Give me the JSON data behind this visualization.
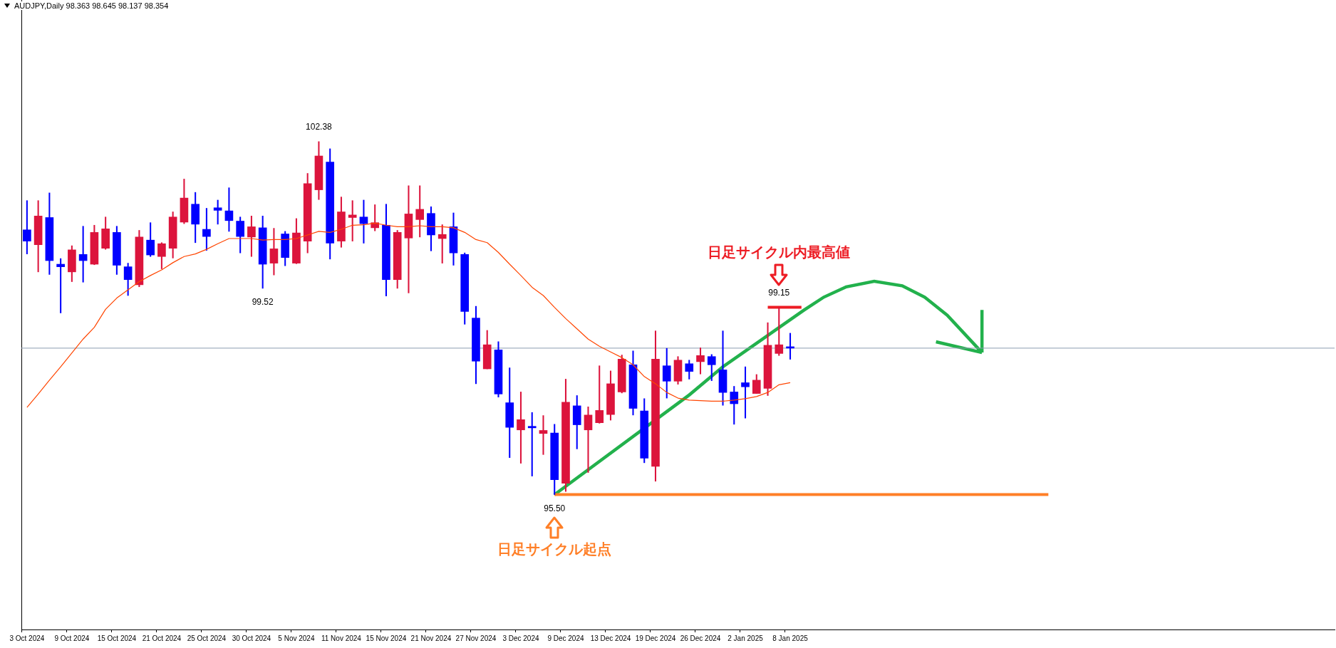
{
  "chart_data": {
    "type": "candlestick",
    "title": "AUDJPY,Daily  98.363 98.645 98.137 98.354",
    "categories": [
      "3 Oct 2024",
      null,
      null,
      null,
      "9 Oct 2024",
      null,
      null,
      null,
      "15 Oct 2024",
      null,
      null,
      null,
      "21 Oct 2024",
      null,
      null,
      null,
      "25 Oct 2024",
      null,
      null,
      null,
      "30 Oct 2024",
      null,
      null,
      null,
      "5 Nov 2024",
      null,
      null,
      null,
      "11 Nov 2024",
      null,
      null,
      null,
      "15 Nov 2024",
      null,
      null,
      null,
      "21 Nov 2024",
      null,
      null,
      null,
      "27 Nov 2024",
      null,
      null,
      null,
      "3 Dec 2024",
      null,
      null,
      null,
      "9 Dec 2024",
      null,
      null,
      null,
      "13 Dec 2024",
      null,
      null,
      null,
      "19 Dec 2024",
      null,
      null,
      null,
      "26 Dec 2024",
      null,
      null,
      null,
      "2 Jan 2025",
      null,
      null,
      null,
      "8 Jan 2025",
      null,
      null,
      null,
      null,
      null,
      null,
      null,
      null,
      null,
      null,
      null,
      null,
      null,
      null,
      null,
      null,
      null,
      null,
      null,
      null,
      null,
      null,
      null,
      null,
      null,
      null,
      null,
      null,
      null,
      null,
      null,
      null,
      null,
      null,
      null,
      null,
      null,
      null,
      null,
      null,
      null,
      null,
      null,
      null,
      null,
      null,
      null,
      null
    ],
    "ohlc": [
      [
        100.66,
        101.23,
        100.19,
        100.44
      ],
      [
        100.37,
        101.23,
        99.84,
        100.93
      ],
      [
        100.9,
        101.38,
        99.79,
        100.06
      ],
      [
        99.99,
        100.1,
        99.04,
        99.94
      ],
      [
        99.84,
        100.35,
        99.65,
        100.27
      ],
      [
        100.18,
        100.73,
        99.64,
        100.06
      ],
      [
        99.99,
        100.75,
        99.98,
        100.61
      ],
      [
        100.3,
        100.91,
        100.28,
        100.68
      ],
      [
        100.61,
        100.73,
        99.79,
        99.97
      ],
      [
        99.94,
        100.01,
        99.38,
        99.69
      ],
      [
        99.59,
        100.65,
        99.55,
        100.52
      ],
      [
        100.46,
        100.8,
        100.14,
        100.17
      ],
      [
        100.14,
        100.41,
        99.9,
        100.39
      ],
      [
        100.3,
        101.01,
        100.11,
        100.91
      ],
      [
        100.81,
        101.65,
        100.78,
        101.28
      ],
      [
        101.16,
        101.39,
        100.41,
        100.77
      ],
      [
        100.67,
        101.08,
        100.26,
        100.53
      ],
      [
        101.09,
        101.24,
        100.77,
        101.04
      ],
      [
        101.03,
        101.48,
        100.63,
        100.84
      ],
      [
        100.83,
        100.91,
        100.21,
        100.53
      ],
      [
        100.52,
        100.93,
        100.14,
        100.72
      ],
      [
        100.7,
        100.93,
        99.52,
        99.99
      ],
      [
        100.01,
        100.69,
        99.78,
        100.29
      ],
      [
        100.58,
        100.63,
        99.96,
        100.12
      ],
      [
        100.01,
        100.88,
        100.0,
        100.6
      ],
      [
        100.44,
        101.76,
        100.21,
        101.56
      ],
      [
        101.44,
        102.38,
        101.25,
        102.1
      ],
      [
        101.98,
        102.24,
        100.09,
        100.4
      ],
      [
        100.44,
        101.3,
        100.32,
        101.01
      ],
      [
        100.9,
        101.23,
        100.44,
        100.95
      ],
      [
        100.91,
        101.24,
        100.4,
        100.78
      ],
      [
        100.7,
        101.15,
        100.64,
        100.8
      ],
      [
        100.75,
        101.16,
        99.37,
        99.69
      ],
      [
        99.69,
        100.65,
        99.52,
        100.61
      ],
      [
        100.5,
        101.52,
        99.43,
        100.97
      ],
      [
        100.86,
        101.52,
        100.52,
        101.06
      ],
      [
        100.98,
        101.11,
        100.25,
        100.56
      ],
      [
        100.49,
        100.76,
        100.01,
        100.57
      ],
      [
        100.72,
        100.99,
        99.97,
        100.21
      ],
      [
        100.18,
        100.21,
        98.82,
        99.07
      ],
      [
        98.94,
        99.17,
        97.66,
        98.1
      ],
      [
        97.95,
        98.7,
        97.95,
        98.42
      ],
      [
        98.32,
        98.48,
        97.4,
        97.46
      ],
      [
        97.29,
        97.97,
        96.22,
        96.81
      ],
      [
        96.76,
        97.5,
        96.11,
        96.96
      ],
      [
        96.83,
        97.1,
        95.86,
        96.8
      ],
      [
        96.69,
        97.04,
        96.28,
        96.75
      ],
      [
        96.7,
        96.87,
        95.5,
        95.79
      ],
      [
        95.72,
        97.75,
        95.56,
        97.3
      ],
      [
        97.23,
        97.43,
        96.39,
        96.86
      ],
      [
        96.76,
        97.21,
        95.93,
        97.05
      ],
      [
        96.9,
        98.01,
        96.89,
        97.14
      ],
      [
        97.06,
        97.91,
        96.95,
        97.66
      ],
      [
        97.5,
        98.22,
        97.48,
        98.14
      ],
      [
        98.03,
        98.3,
        97.05,
        97.18
      ],
      [
        97.13,
        97.37,
        96.12,
        96.21
      ],
      [
        96.05,
        98.69,
        95.76,
        98.14
      ],
      [
        98.01,
        98.35,
        97.38,
        97.71
      ],
      [
        97.71,
        98.19,
        97.65,
        98.12
      ],
      [
        98.05,
        98.12,
        97.75,
        97.9
      ],
      [
        98.09,
        98.36,
        97.85,
        98.21
      ],
      [
        98.19,
        98.23,
        97.72,
        98.03
      ],
      [
        97.93,
        98.69,
        97.24,
        97.49
      ],
      [
        97.5,
        97.61,
        96.87,
        97.27
      ],
      [
        97.68,
        97.99,
        96.99,
        97.6
      ],
      [
        97.47,
        97.84,
        97.47,
        97.73
      ],
      [
        97.57,
        98.85,
        97.43,
        98.41
      ],
      [
        98.25,
        99.15,
        98.21,
        98.42
      ],
      [
        98.363,
        98.645,
        98.137,
        98.354
      ],
      null,
      null,
      null,
      null,
      null,
      null,
      null,
      null,
      null,
      null,
      null,
      null,
      null,
      null,
      null,
      null,
      null,
      null,
      null,
      null,
      null,
      null,
      null,
      null,
      null,
      null,
      null,
      null,
      null,
      null,
      null,
      null,
      null,
      null,
      null,
      null,
      null,
      null,
      null,
      null,
      null,
      null,
      null,
      null,
      null,
      null,
      null,
      null
    ],
    "colors": [
      "#0000ff",
      "#dc143c",
      "#0000ff",
      "#0000ff",
      "#dc143c",
      "#0000ff",
      "#dc143c",
      "#dc143c",
      "#0000ff",
      "#0000ff",
      "#dc143c",
      "#0000ff",
      "#dc143c",
      "#dc143c",
      "#dc143c",
      "#0000ff",
      "#0000ff",
      "#0000ff",
      "#0000ff",
      "#0000ff",
      "#dc143c",
      "#0000ff",
      "#dc143c",
      "#0000ff",
      "#dc143c",
      "#dc143c",
      "#dc143c",
      "#0000ff",
      "#dc143c",
      "#dc143c",
      "#0000ff",
      "#dc143c",
      "#0000ff",
      "#dc143c",
      "#dc143c",
      "#dc143c",
      "#0000ff",
      "#dc143c",
      "#0000ff",
      "#0000ff",
      "#0000ff",
      "#dc143c",
      "#0000ff",
      "#0000ff",
      "#dc143c",
      "#0000ff",
      "#dc143c",
      "#0000ff",
      "#dc143c",
      "#0000ff",
      "#dc143c",
      "#dc143c",
      "#dc143c",
      "#dc143c",
      "#0000ff",
      "#0000ff",
      "#dc143c",
      "#0000ff",
      "#dc143c",
      "#0000ff",
      "#dc143c",
      "#0000ff",
      "#0000ff",
      "#0000ff",
      "#0000ff",
      "#dc143c",
      "#dc143c",
      "#dc143c",
      "#0000ff",
      null,
      null,
      null,
      null,
      null,
      null,
      null,
      null,
      null,
      null,
      null,
      null,
      null,
      null,
      null,
      null,
      null,
      null,
      null,
      null,
      null,
      null,
      null,
      null,
      null,
      null,
      null,
      null,
      null,
      null,
      null,
      null,
      null,
      null,
      null,
      null,
      null,
      null,
      null,
      null,
      null,
      null,
      null,
      null,
      null,
      null,
      null,
      null
    ],
    "value_labels": [
      null,
      null,
      null,
      null,
      null,
      null,
      null,
      null,
      null,
      null,
      null,
      null,
      null,
      null,
      null,
      null,
      null,
      null,
      null,
      null,
      null,
      "99.52",
      null,
      null,
      null,
      null,
      "102.38",
      null,
      null,
      null,
      null,
      null,
      null,
      null,
      null,
      null,
      null,
      null,
      null,
      null,
      null,
      null,
      null,
      null,
      null,
      null,
      null,
      "95.50",
      null,
      null,
      null,
      null,
      null,
      null,
      null,
      null,
      null,
      null,
      null,
      null,
      null,
      null,
      null,
      null,
      null,
      null,
      null,
      "99.15",
      null,
      null,
      null,
      null,
      null,
      null,
      null,
      null,
      null,
      null,
      null,
      null,
      null,
      null,
      null,
      null,
      null,
      null,
      null,
      null,
      null,
      null,
      null,
      null,
      null,
      null,
      null,
      null,
      null,
      null,
      null,
      null,
      null,
      null,
      null,
      null,
      null,
      null,
      null,
      null,
      null,
      null,
      null,
      null,
      null,
      null,
      null,
      null,
      null
    ],
    "series": [
      {
        "type": "line",
        "color": "#ff4500",
        "values": [
          97.2,
          97.46,
          97.73,
          97.99,
          98.26,
          98.53,
          98.76,
          99.11,
          99.33,
          99.49,
          99.65,
          99.77,
          99.88,
          100.02,
          100.14,
          100.19,
          100.28,
          100.39,
          100.49,
          100.49,
          100.49,
          100.46,
          100.47,
          100.47,
          100.49,
          100.56,
          100.63,
          100.61,
          100.67,
          100.75,
          100.76,
          100.79,
          100.75,
          100.72,
          100.72,
          100.74,
          100.72,
          100.72,
          100.7,
          100.61,
          100.47,
          100.41,
          100.22,
          99.99,
          99.77,
          99.54,
          99.38,
          99.15,
          98.93,
          98.73,
          98.53,
          98.39,
          98.28,
          98.17,
          98.03,
          97.8,
          97.66,
          97.49,
          97.38,
          97.34,
          97.33,
          97.32,
          97.32,
          97.34,
          97.37,
          97.41,
          97.49,
          97.64,
          97.68,
          null,
          null,
          null,
          null,
          null,
          null,
          null,
          null,
          null,
          null,
          null,
          null,
          null,
          null,
          null,
          null,
          null,
          null,
          null,
          null,
          null,
          null,
          null,
          null,
          null,
          null,
          null,
          null,
          null,
          null,
          null,
          null,
          null,
          null,
          null,
          null,
          null,
          null,
          null,
          null,
          null,
          null,
          null,
          null,
          null,
          null,
          null,
          null
        ]
      },
      {
        "type": "line",
        "color": "#ed1c24",
        "values": [
          null,
          null,
          null,
          null,
          null,
          null,
          null,
          null,
          null,
          null,
          null,
          null,
          null,
          null,
          null,
          null,
          null,
          null,
          null,
          null,
          null,
          null,
          null,
          null,
          null,
          null,
          null,
          null,
          null,
          null,
          null,
          null,
          null,
          null,
          null,
          null,
          null,
          null,
          null,
          null,
          null,
          null,
          null,
          null,
          null,
          null,
          null,
          null,
          null,
          null,
          null,
          null,
          null,
          null,
          null,
          null,
          null,
          null,
          null,
          null,
          null,
          null,
          null,
          null,
          null,
          null,
          99.15,
          99.15,
          99.15,
          99.15,
          null,
          null,
          null,
          null,
          null,
          null,
          null,
          null,
          null,
          null,
          null,
          null,
          null,
          null,
          null,
          null,
          null,
          null,
          null,
          null,
          null,
          null,
          null,
          null,
          null,
          null,
          null,
          null,
          null,
          null,
          null,
          null,
          null,
          null,
          null,
          null,
          null,
          null,
          null,
          null,
          null,
          null,
          null,
          null,
          null,
          null,
          null
        ]
      },
      {
        "type": "line",
        "color": "#ff7f27",
        "values": [
          null,
          null,
          null,
          null,
          null,
          null,
          null,
          null,
          null,
          null,
          null,
          null,
          null,
          null,
          null,
          null,
          null,
          null,
          null,
          null,
          null,
          null,
          null,
          null,
          null,
          null,
          null,
          null,
          null,
          null,
          null,
          null,
          null,
          null,
          null,
          null,
          null,
          null,
          null,
          null,
          null,
          null,
          null,
          null,
          null,
          null,
          null,
          95.5,
          95.5,
          95.5,
          95.5,
          95.5,
          95.5,
          95.5,
          95.5,
          95.5,
          95.5,
          95.5,
          95.5,
          95.5,
          95.5,
          95.5,
          95.5,
          95.5,
          95.5,
          95.5,
          95.5,
          95.5,
          95.5,
          95.5,
          95.5,
          95.5,
          95.5,
          95.5,
          95.5,
          95.5,
          95.5,
          95.5,
          95.5,
          95.5,
          95.5,
          95.5,
          95.5,
          95.5,
          95.5,
          95.5,
          95.5,
          95.5,
          95.5,
          95.5,
          95.5,
          95.5,
          null,
          null,
          null,
          null,
          null,
          null,
          null,
          null,
          null,
          null,
          null,
          null,
          null,
          null,
          null,
          null,
          null,
          null,
          null,
          null,
          null,
          null,
          null,
          null,
          null
        ]
      }
    ],
    "ref_lines": [
      {
        "axis": "y",
        "value": 98.354,
        "color": "#8c9cb0"
      }
    ],
    "annotations": [
      "日足サイクル内最高値",
      "日足サイクル起点"
    ],
    "ylim": [
      92.87,
      105.14
    ],
    "tick_labels": "x",
    "grid": false,
    "legend": false
  }
}
